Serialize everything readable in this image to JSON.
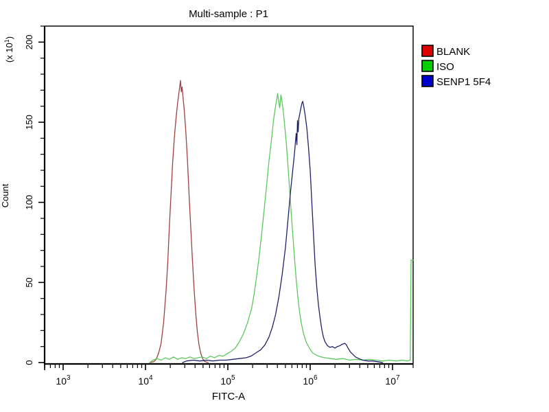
{
  "chart_data": {
    "type": "line",
    "subtype": "flow-cytometry-histogram-overlay",
    "title": "Multi-sample : P1",
    "xlabel": "FITC-A",
    "ylabel": "Count",
    "y_multiplier": {
      "prefix": "(x 10",
      "exp": "1",
      "suffix": ")"
    },
    "x_scale": "log10",
    "x_range_log": [
      2.775,
      7.25
    ],
    "x_ticks": [
      {
        "log": 3,
        "base": "10",
        "exp": "3"
      },
      {
        "log": 4,
        "base": "10",
        "exp": "4"
      },
      {
        "log": 5,
        "base": "10",
        "exp": "5"
      },
      {
        "log": 6,
        "base": "10",
        "exp": "6"
      },
      {
        "log": 7,
        "base": "10",
        "exp": "7"
      }
    ],
    "y_range": [
      0,
      210
    ],
    "y_major_ticks": [
      0,
      50,
      100,
      150,
      200
    ],
    "y_minor_step": 10,
    "grid": "off",
    "legend_position": "outside-top-right",
    "series": [
      {
        "name": "BLANK",
        "color": "#a04040",
        "legend_color": "#dd0000",
        "peak_x": 27000,
        "peak_count": 176,
        "points": [
          [
            4.05,
            0
          ],
          [
            4.1,
            0.5
          ],
          [
            4.13,
            2
          ],
          [
            4.16,
            6
          ],
          [
            4.19,
            12
          ],
          [
            4.22,
            25
          ],
          [
            4.25,
            45
          ],
          [
            4.27,
            62
          ],
          [
            4.29,
            85
          ],
          [
            4.31,
            105
          ],
          [
            4.33,
            125
          ],
          [
            4.35,
            140
          ],
          [
            4.37,
            152
          ],
          [
            4.39,
            162
          ],
          [
            4.41,
            170
          ],
          [
            4.42,
            174
          ],
          [
            4.425,
            176
          ],
          [
            4.435,
            169
          ],
          [
            4.445,
            172
          ],
          [
            4.455,
            166
          ],
          [
            4.47,
            158
          ],
          [
            4.49,
            144
          ],
          [
            4.51,
            126
          ],
          [
            4.53,
            104
          ],
          [
            4.55,
            84
          ],
          [
            4.57,
            64
          ],
          [
            4.59,
            46
          ],
          [
            4.61,
            31
          ],
          [
            4.63,
            19
          ],
          [
            4.65,
            11
          ],
          [
            4.67,
            6
          ],
          [
            4.69,
            3
          ],
          [
            4.71,
            1
          ],
          [
            4.73,
            0.5
          ],
          [
            4.76,
            0
          ]
        ]
      },
      {
        "name": "ISO",
        "color": "#5cc85c",
        "legend_color": "#00cc00",
        "peak_x": 400000,
        "peak_count": 168,
        "points": [
          [
            4.05,
            0
          ],
          [
            4.09,
            1.5
          ],
          [
            4.14,
            2.5
          ],
          [
            4.19,
            1.5
          ],
          [
            4.24,
            3
          ],
          [
            4.29,
            2
          ],
          [
            4.34,
            3.5
          ],
          [
            4.39,
            2
          ],
          [
            4.44,
            3
          ],
          [
            4.49,
            2.5
          ],
          [
            4.54,
            3.5
          ],
          [
            4.59,
            2.5
          ],
          [
            4.64,
            3
          ],
          [
            4.69,
            3.5
          ],
          [
            4.74,
            2.5
          ],
          [
            4.79,
            4
          ],
          [
            4.84,
            3
          ],
          [
            4.89,
            4.5
          ],
          [
            4.94,
            4
          ],
          [
            4.99,
            5.5
          ],
          [
            5.04,
            7
          ],
          [
            5.09,
            9
          ],
          [
            5.14,
            13
          ],
          [
            5.19,
            18
          ],
          [
            5.24,
            25
          ],
          [
            5.29,
            34
          ],
          [
            5.32,
            43
          ],
          [
            5.35,
            54
          ],
          [
            5.38,
            66
          ],
          [
            5.41,
            80
          ],
          [
            5.44,
            95
          ],
          [
            5.47,
            110
          ],
          [
            5.5,
            126
          ],
          [
            5.53,
            139
          ],
          [
            5.55,
            149
          ],
          [
            5.57,
            157
          ],
          [
            5.59,
            163
          ],
          [
            5.605,
            168
          ],
          [
            5.62,
            162
          ],
          [
            5.63,
            159
          ],
          [
            5.645,
            167
          ],
          [
            5.66,
            162
          ],
          [
            5.675,
            156
          ],
          [
            5.69,
            148
          ],
          [
            5.71,
            137
          ],
          [
            5.73,
            123
          ],
          [
            5.75,
            108
          ],
          [
            5.77,
            93
          ],
          [
            5.79,
            79
          ],
          [
            5.81,
            65
          ],
          [
            5.83,
            52
          ],
          [
            5.85,
            41
          ],
          [
            5.87,
            32
          ],
          [
            5.89,
            25
          ],
          [
            5.92,
            18
          ],
          [
            5.95,
            13
          ],
          [
            5.99,
            9
          ],
          [
            6.03,
            6
          ],
          [
            6.08,
            4.5
          ],
          [
            6.13,
            3.5
          ],
          [
            6.18,
            3
          ],
          [
            6.25,
            2.5
          ],
          [
            6.32,
            2
          ],
          [
            6.4,
            2.5
          ],
          [
            6.48,
            1.5
          ],
          [
            6.56,
            2
          ],
          [
            6.64,
            1.5
          ],
          [
            6.72,
            2
          ],
          [
            6.8,
            1.5
          ],
          [
            6.88,
            1
          ],
          [
            6.96,
            1.5
          ],
          [
            7.04,
            1
          ],
          [
            7.12,
            1.5
          ],
          [
            7.18,
            1
          ],
          [
            7.215,
            1.5
          ],
          [
            7.225,
            64
          ],
          [
            7.25,
            64
          ]
        ]
      },
      {
        "name": "SENP1 5F4",
        "color": "#20206a",
        "legend_color": "#0000cc",
        "peak_x": 800000,
        "peak_count": 163,
        "points": [
          [
            4.45,
            0
          ],
          [
            4.5,
            1
          ],
          [
            4.58,
            1.5
          ],
          [
            4.66,
            1
          ],
          [
            4.74,
            1.5
          ],
          [
            4.82,
            1
          ],
          [
            4.9,
            1.5
          ],
          [
            4.98,
            1.5
          ],
          [
            5.06,
            2
          ],
          [
            5.14,
            2.5
          ],
          [
            5.22,
            3
          ],
          [
            5.28,
            4
          ],
          [
            5.34,
            6
          ],
          [
            5.4,
            8
          ],
          [
            5.45,
            11
          ],
          [
            5.5,
            16
          ],
          [
            5.54,
            22
          ],
          [
            5.58,
            30
          ],
          [
            5.62,
            41
          ],
          [
            5.66,
            55
          ],
          [
            5.7,
            72
          ],
          [
            5.73,
            89
          ],
          [
            5.76,
            106
          ],
          [
            5.79,
            121
          ],
          [
            5.81,
            131
          ],
          [
            5.83,
            143
          ],
          [
            5.838,
            136
          ],
          [
            5.846,
            151
          ],
          [
            5.854,
            144
          ],
          [
            5.862,
            152
          ],
          [
            5.88,
            157
          ],
          [
            5.9,
            162
          ],
          [
            5.91,
            163
          ],
          [
            5.925,
            159
          ],
          [
            5.94,
            154
          ],
          [
            5.96,
            146
          ],
          [
            5.98,
            134
          ],
          [
            6.0,
            120
          ],
          [
            6.02,
            100
          ],
          [
            6.04,
            80
          ],
          [
            6.06,
            61
          ],
          [
            6.08,
            47
          ],
          [
            6.1,
            36
          ],
          [
            6.12,
            28
          ],
          [
            6.14,
            21
          ],
          [
            6.16,
            16
          ],
          [
            6.18,
            13
          ],
          [
            6.21,
            10.5
          ],
          [
            6.24,
            9.5
          ],
          [
            6.27,
            10
          ],
          [
            6.3,
            9
          ],
          [
            6.33,
            10
          ],
          [
            6.36,
            10.5
          ],
          [
            6.39,
            11.5
          ],
          [
            6.42,
            12
          ],
          [
            6.44,
            11
          ],
          [
            6.46,
            9
          ],
          [
            6.49,
            6.5
          ],
          [
            6.52,
            5
          ],
          [
            6.55,
            3.5
          ],
          [
            6.59,
            2.5
          ],
          [
            6.64,
            1.5
          ],
          [
            6.7,
            1
          ],
          [
            6.76,
            1
          ],
          [
            6.82,
            0.5
          ],
          [
            6.88,
            0
          ]
        ]
      }
    ]
  }
}
